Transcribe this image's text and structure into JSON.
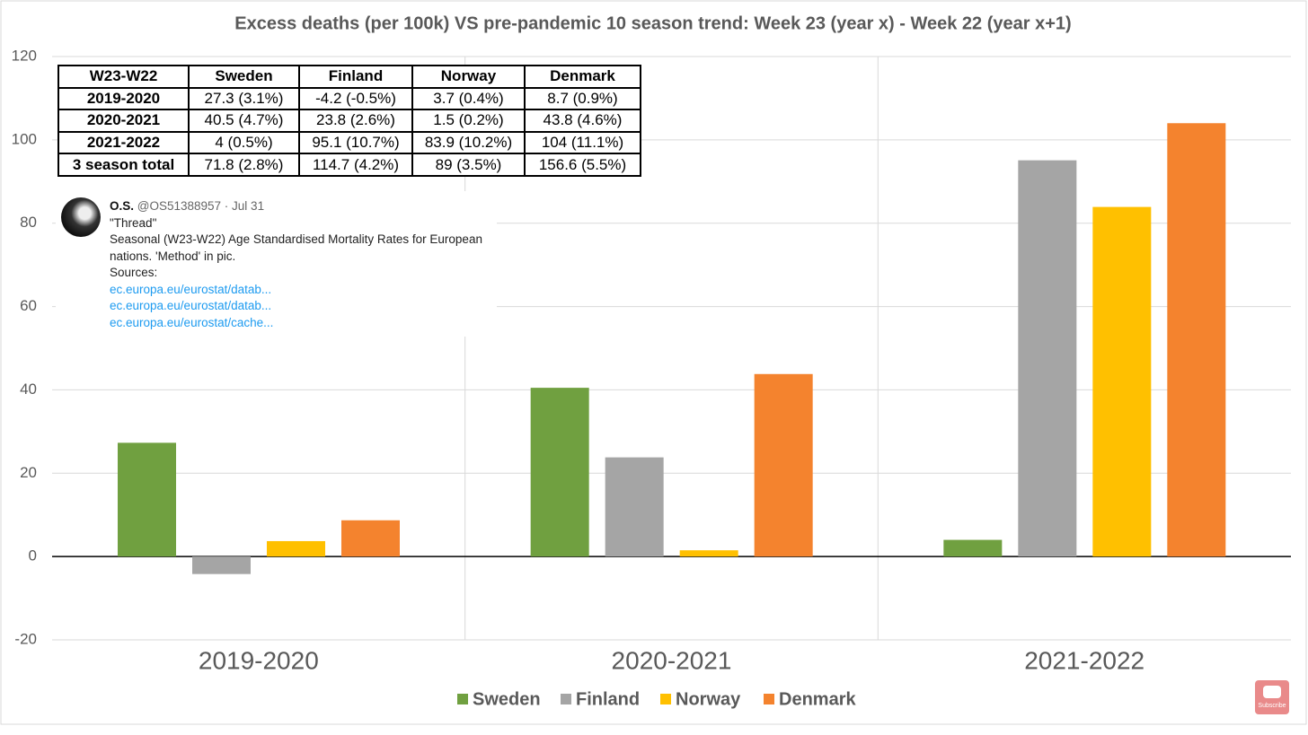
{
  "chart_data": {
    "type": "bar",
    "title": "Excess deaths (per 100k) VS pre-pandemic 10 season trend: Week 23 (year x) - Week 22 (year x+1)",
    "categories": [
      "2019-2020",
      "2020-2021",
      "2021-2022"
    ],
    "series": [
      {
        "name": "Sweden",
        "color": "#70a040",
        "values": [
          27.3,
          40.5,
          4
        ]
      },
      {
        "name": "Finland",
        "color": "#a5a5a5",
        "values": [
          -4.2,
          23.8,
          95.1
        ]
      },
      {
        "name": "Norway",
        "color": "#ffc000",
        "values": [
          3.7,
          1.5,
          83.9
        ]
      },
      {
        "name": "Denmark",
        "color": "#f4832e",
        "values": [
          8.7,
          43.8,
          104
        ]
      }
    ],
    "ylim": [
      -20,
      120
    ],
    "yticks": [
      -20,
      0,
      20,
      40,
      60,
      80,
      100,
      120
    ],
    "grid": true,
    "legend": "bottom"
  },
  "table": {
    "rows": [
      [
        "W23-W22",
        "Sweden",
        "Finland",
        "Norway",
        "Denmark"
      ],
      [
        "2019-2020",
        "27.3 (3.1%)",
        "-4.2 (-0.5%)",
        "3.7 (0.4%)",
        "8.7 (0.9%)"
      ],
      [
        "2020-2021",
        "40.5 (4.7%)",
        "23.8 (2.6%)",
        "1.5 (0.2%)",
        "43.8 (4.6%)"
      ],
      [
        "2021-2022",
        "4 (0.5%)",
        "95.1 (10.7%)",
        "83.9 (10.2%)",
        "104 (11.1%)"
      ],
      [
        "3 season total",
        "71.8 (2.8%)",
        "114.7 (4.2%)",
        "89 (3.5%)",
        "156.6 (5.5%)"
      ]
    ]
  },
  "tweet": {
    "name": "O.S.",
    "handle": "@OS51388957 · Jul 31",
    "lines": [
      "\"Thread\"",
      "Seasonal (W23-W22) Age Standardised Mortality Rates for European",
      "nations. 'Method' in pic.",
      "Sources:"
    ],
    "links": [
      "ec.europa.eu/eurostat/datab...",
      "ec.europa.eu/eurostat/datab...",
      "ec.europa.eu/eurostat/cache..."
    ]
  },
  "subscribe_label": "Subscribe"
}
